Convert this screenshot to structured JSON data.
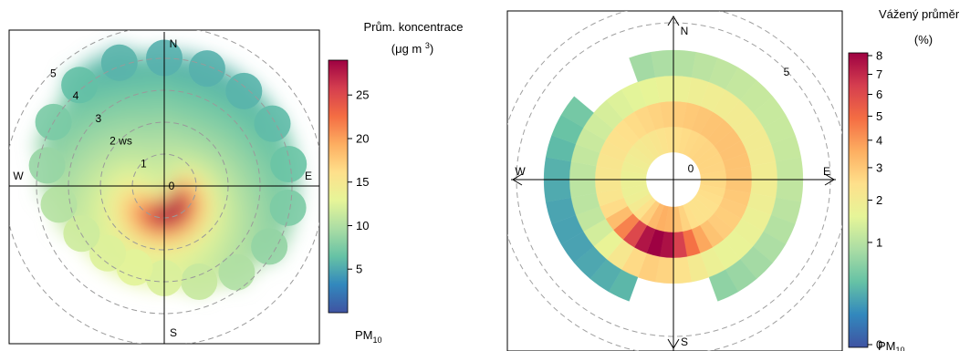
{
  "chart_data": [
    {
      "type": "heatmap",
      "kind": "polar-plot",
      "directions": [
        "N",
        "E",
        "S",
        "W"
      ],
      "rings": [
        1,
        2,
        3,
        4,
        5
      ],
      "ring_label_suffix": " ws",
      "center_label": "0",
      "legend_title_line1": "Prům. koncentrace",
      "legend_title_line2": "(μg m ",
      "legend_title_sup": "3",
      "legend_title_end": ")",
      "legend_ticks": [
        5,
        10,
        15,
        20,
        25
      ],
      "legend_range": [
        0,
        29
      ],
      "legend_footer": "PM",
      "legend_footer_sub": "10",
      "hotspot": {
        "direction_deg": 195,
        "wind_speed": 0.8,
        "value": 29
      },
      "colormap": [
        "#3f53a2",
        "#3288bd",
        "#66c2a5",
        "#abdda4",
        "#e6f598",
        "#fee08b",
        "#fdae61",
        "#f46d43",
        "#d53e4f",
        "#9e0142"
      ]
    },
    {
      "type": "heatmap",
      "kind": "polar-annulus",
      "directions": [
        "N",
        "E",
        "S",
        "W"
      ],
      "ring_marker": "5",
      "center_label": "0",
      "legend_title_line1": "Vážený průměr",
      "legend_title_line2": "(%)",
      "legend_ticks": [
        0,
        1,
        2,
        3,
        4,
        5,
        6,
        7,
        8
      ],
      "legend_range": [
        0,
        8
      ],
      "legend_footer": "PM",
      "legend_footer_sub": "10",
      "hotspot": {
        "direction_deg": 195,
        "ring_index": 1,
        "value": 8
      },
      "colormap": [
        "#3f53a2",
        "#3288bd",
        "#66c2a5",
        "#abdda4",
        "#e6f598",
        "#fee08b",
        "#fdae61",
        "#f46d43",
        "#d53e4f",
        "#9e0142"
      ]
    }
  ]
}
